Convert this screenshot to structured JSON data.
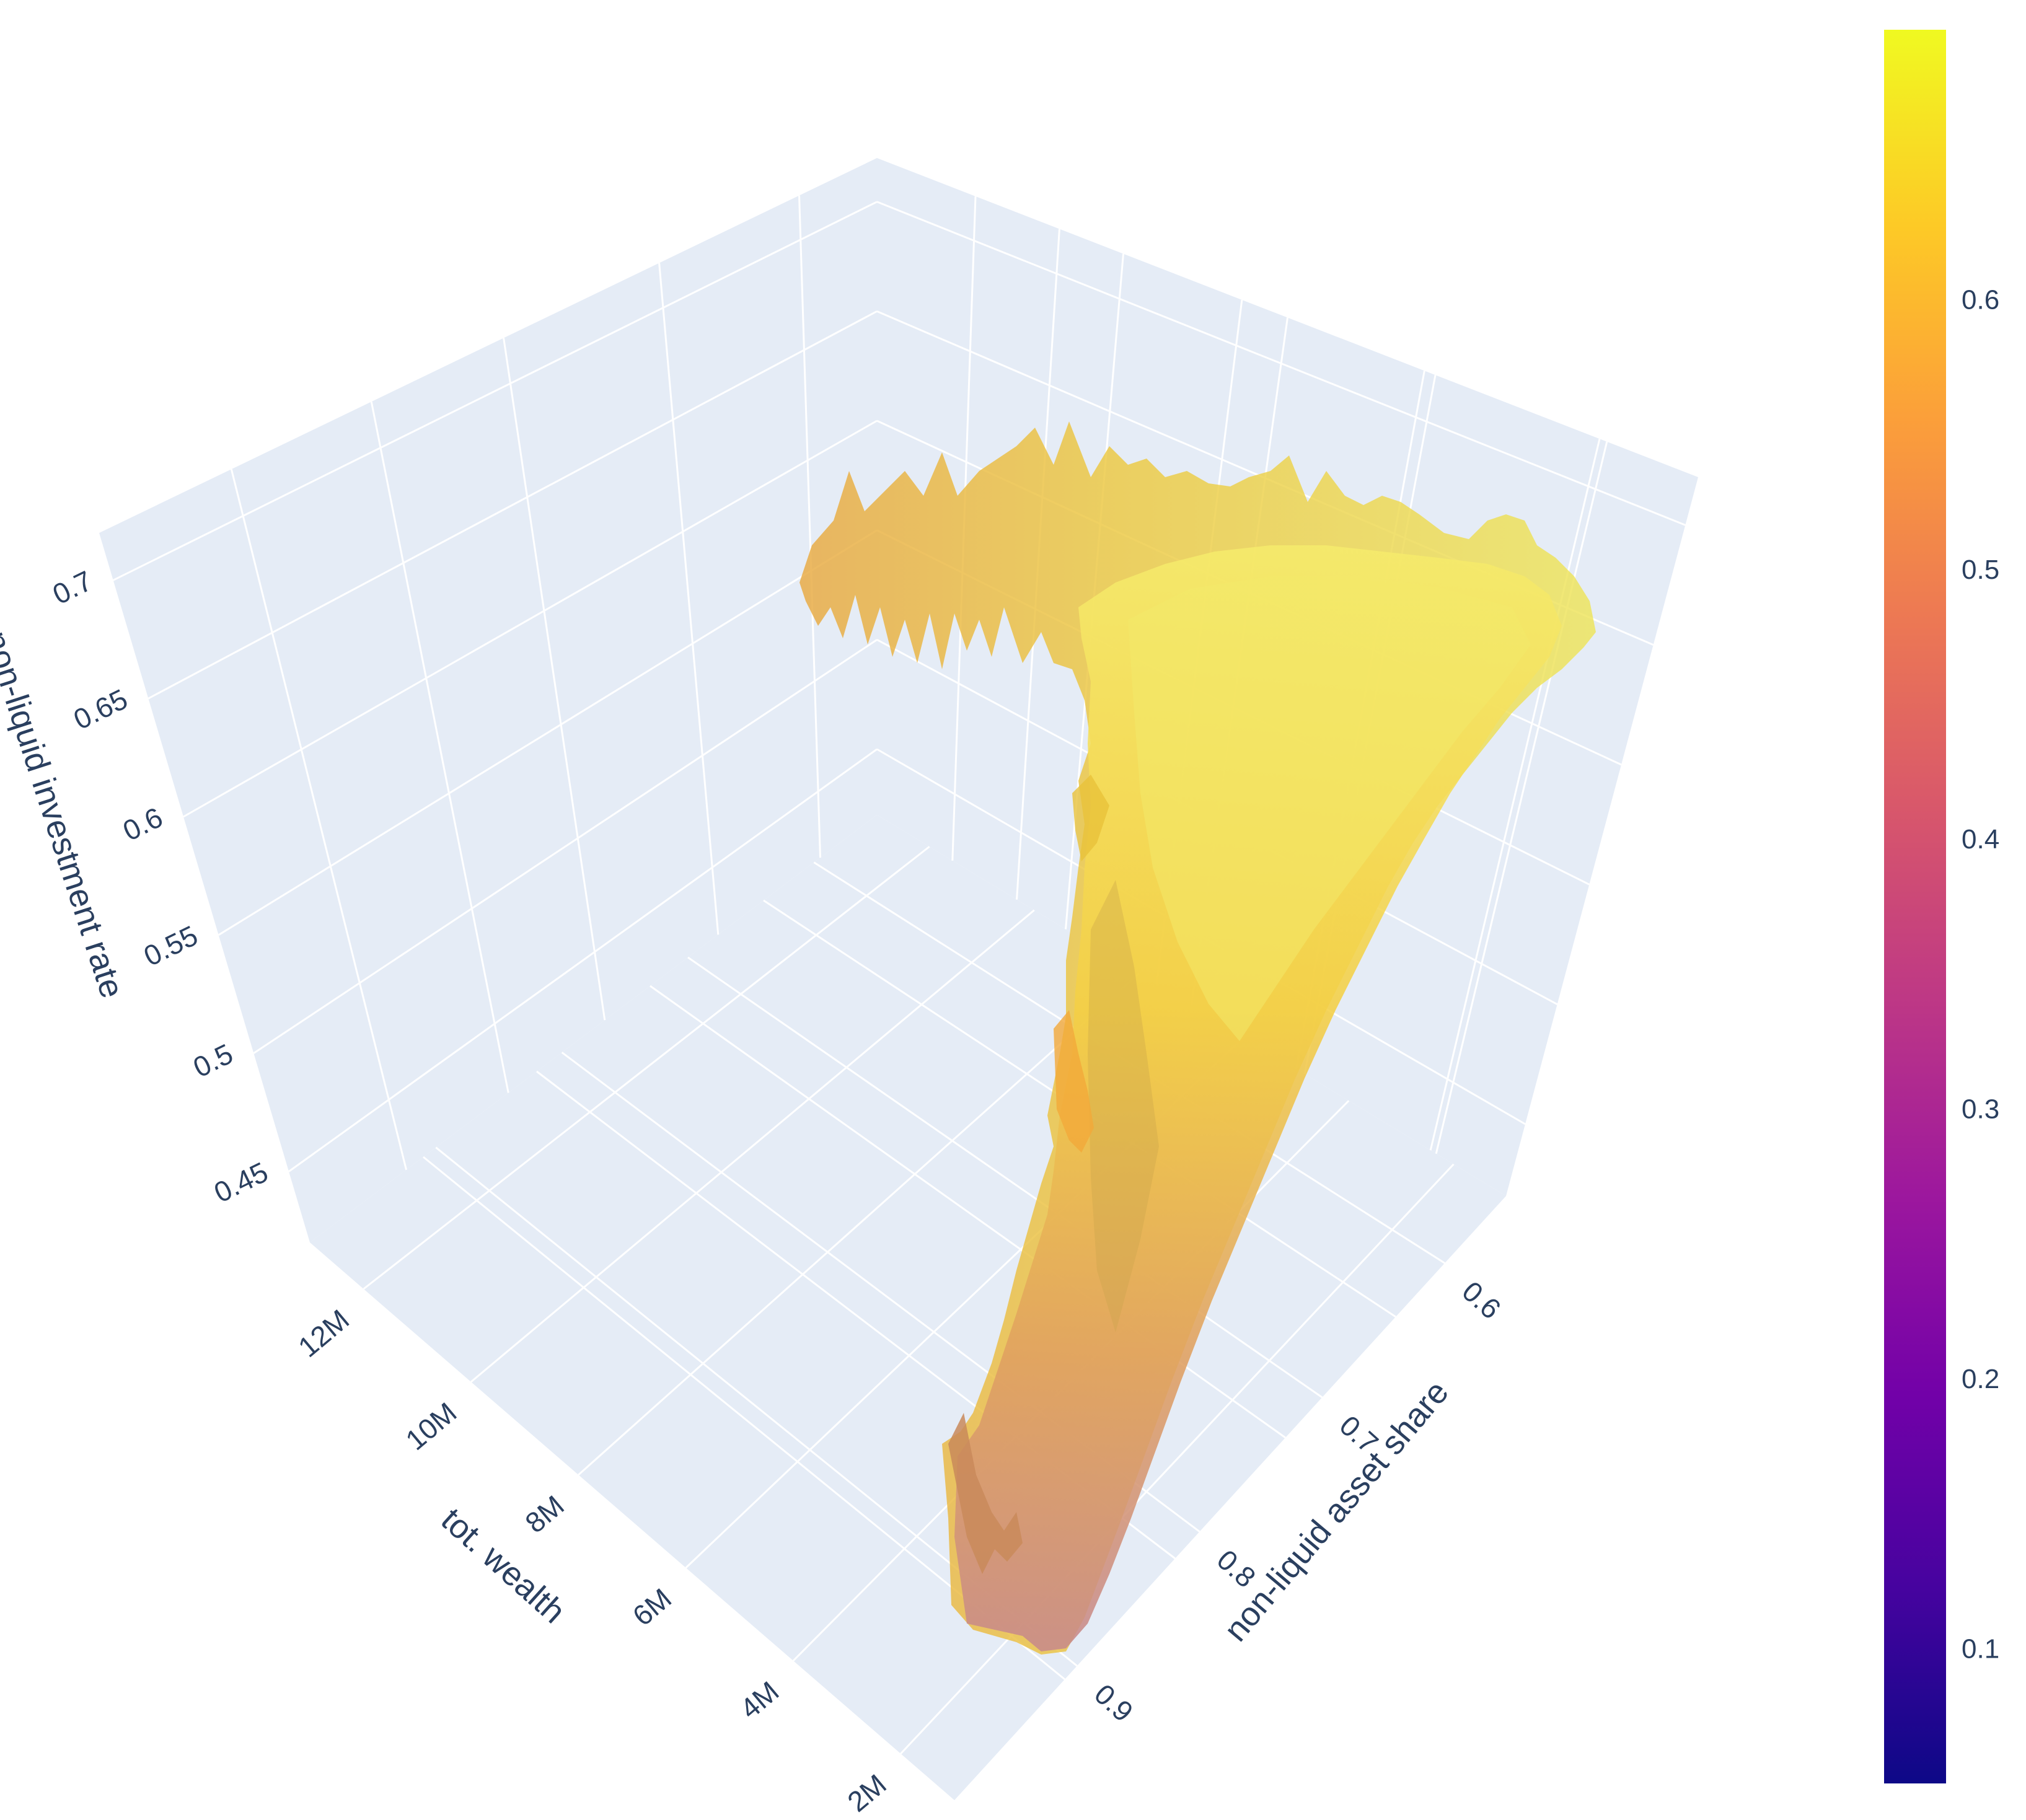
{
  "chart_data": {
    "type": "surface",
    "axes": {
      "x": {
        "title": "tot. wealth",
        "ticks": [
          "2M",
          "4M",
          "6M",
          "8M",
          "10M",
          "12M"
        ],
        "range": [
          1000000,
          13000000
        ]
      },
      "y": {
        "title": "non-liquid asset share",
        "ticks": [
          "0.6",
          "0.7",
          "0.8",
          "0.9"
        ],
        "range": [
          0.55,
          1.0
        ]
      },
      "z": {
        "title": "non-liquid investment rate",
        "ticks": [
          "0.45",
          "0.5",
          "0.55",
          "0.6",
          "0.65",
          "0.7"
        ],
        "range": [
          0.42,
          0.72
        ]
      }
    },
    "colorbar": {
      "ticks": [
        "0.1",
        "0.2",
        "0.3",
        "0.4",
        "0.5",
        "0.6"
      ],
      "range": [
        0.05,
        0.7
      ],
      "colorscale": [
        "#0d0887",
        "#46039f",
        "#7201a8",
        "#9c179e",
        "#bd3786",
        "#d8576b",
        "#ed7953",
        "#fb9f3a",
        "#fdca26",
        "#f0f921"
      ]
    },
    "colors": {
      "scene_background": "#e5ecf6",
      "gridline": "#ffffff",
      "text": "#2a3f5f"
    }
  }
}
